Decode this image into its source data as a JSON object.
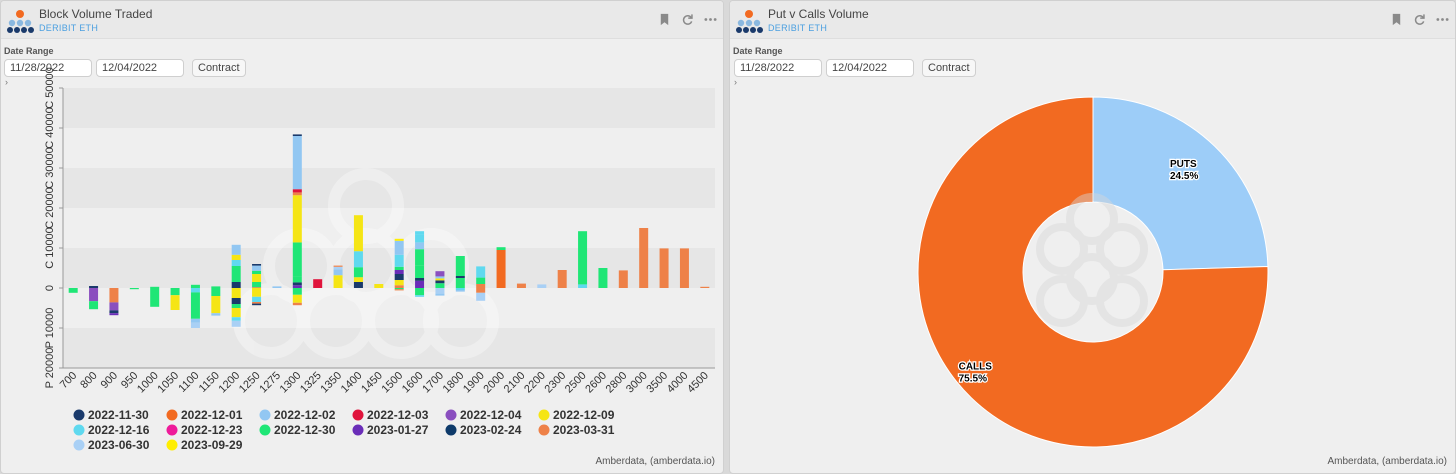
{
  "panels": [
    {
      "title": "Block Volume Traded",
      "subtitle": "DERIBIT ETH",
      "date_range_label": "Date Range",
      "date_from": "11/28/2022",
      "date_to": "12/04/2022",
      "contract_label": "Contract",
      "credit": "Amberdata, (amberdata.io)"
    },
    {
      "title": "Put v Calls Volume",
      "subtitle": "DERIBIT ETH",
      "date_range_label": "Date Range",
      "date_from": "11/28/2022",
      "date_to": "12/04/2022",
      "contract_label": "Contract",
      "credit": "Amberdata, (amberdata.io)"
    }
  ],
  "icons": [
    "logo-icon",
    "bookmark-icon",
    "refresh-icon",
    "more-icon",
    "chevron-right-icon"
  ],
  "chart_data": [
    {
      "type": "bar",
      "stacked": true,
      "title": "",
      "xlabel": "",
      "ylabel": "",
      "ylim": [
        -20000,
        50000
      ],
      "ytick_labels": [
        {
          "value": 50000,
          "label": "C 50000"
        },
        {
          "value": 40000,
          "label": "C 40000"
        },
        {
          "value": 30000,
          "label": "C 30000"
        },
        {
          "value": 20000,
          "label": "C 20000"
        },
        {
          "value": 10000,
          "label": "C 10000"
        },
        {
          "value": 0,
          "label": "0"
        },
        {
          "value": -10000,
          "label": "P 10000"
        },
        {
          "value": -20000,
          "label": "P 20000"
        }
      ],
      "categories": [
        "700",
        "800",
        "900",
        "950",
        "1000",
        "1050",
        "1100",
        "1150",
        "1200",
        "1250",
        "1275",
        "1300",
        "1325",
        "1350",
        "1400",
        "1450",
        "1500",
        "1600",
        "1700",
        "1800",
        "1900",
        "2000",
        "2100",
        "2200",
        "2300",
        "2500",
        "2600",
        "2800",
        "3000",
        "3500",
        "4000",
        "4500"
      ],
      "legend_position": "bottom",
      "series": [
        {
          "name": "2022-11-30",
          "color": "#1a3a6b"
        },
        {
          "name": "2022-12-01",
          "color": "#f26a21"
        },
        {
          "name": "2022-12-02",
          "color": "#92c7f2"
        },
        {
          "name": "2022-12-03",
          "color": "#e0143c"
        },
        {
          "name": "2022-12-04",
          "color": "#8a4fbf"
        },
        {
          "name": "2022-12-09",
          "color": "#f5e515"
        },
        {
          "name": "2022-12-16",
          "color": "#5fd9ef"
        },
        {
          "name": "2022-12-23",
          "color": "#ee1b9a"
        },
        {
          "name": "2022-12-30",
          "color": "#1fe676"
        },
        {
          "name": "2023-01-27",
          "color": "#6a2db8"
        },
        {
          "name": "2023-02-24",
          "color": "#0e3a6a"
        },
        {
          "name": "2023-03-31",
          "color": "#ee8148"
        },
        {
          "name": "2023-06-30",
          "color": "#a9d0f5"
        },
        {
          "name": "2023-09-29",
          "color": "#ffee00"
        }
      ],
      "stacks": [
        {
          "category": "700",
          "calls": [],
          "puts": [
            [
              "2022-12-30",
              1200
            ]
          ]
        },
        {
          "category": "800",
          "calls": [
            [
              "2022-11-30",
              500
            ]
          ],
          "puts": [
            [
              "2022-12-04",
              3300
            ],
            [
              "2022-12-30",
              2000
            ]
          ]
        },
        {
          "category": "900",
          "calls": [],
          "puts": [
            [
              "2023-03-31",
              3600
            ],
            [
              "2022-12-04",
              2000
            ],
            [
              "2022-11-30",
              700
            ],
            [
              "2023-01-27",
              500
            ]
          ]
        },
        {
          "category": "950",
          "calls": [],
          "puts": [
            [
              "2022-12-30",
              300
            ]
          ]
        },
        {
          "category": "1000",
          "calls": [
            [
              "2022-12-30",
              300
            ]
          ],
          "puts": [
            [
              "2022-12-30",
              4700
            ]
          ]
        },
        {
          "category": "1050",
          "calls": [],
          "puts": [
            [
              "2022-12-30",
              1800
            ],
            [
              "2022-12-09",
              3700
            ]
          ]
        },
        {
          "category": "1100",
          "calls": [
            [
              "2022-12-30",
              800
            ]
          ],
          "puts": [
            [
              "2022-12-16",
              1100
            ],
            [
              "2022-12-30",
              6600
            ],
            [
              "2022-12-02",
              1000
            ],
            [
              "2023-06-30",
              1300
            ]
          ]
        },
        {
          "category": "1150",
          "calls": [
            [
              "2022-12-30",
              400
            ]
          ],
          "puts": [
            [
              "2022-12-30",
              2000
            ],
            [
              "2022-12-09",
              4300
            ],
            [
              "2022-12-02",
              600
            ]
          ]
        },
        {
          "category": "1200",
          "calls": [
            [
              "2022-11-30",
              1500
            ],
            [
              "2022-12-30",
              4000
            ],
            [
              "2022-12-16",
              1500
            ],
            [
              "2022-12-09",
              1300
            ],
            [
              "2022-12-02",
              2500
            ]
          ],
          "puts": [
            [
              "2022-12-09",
              2500
            ],
            [
              "2022-11-30",
              1500
            ],
            [
              "2022-12-30",
              1000
            ],
            [
              "2022-12-09",
              2300
            ],
            [
              "2022-12-16",
              900
            ],
            [
              "2023-06-30",
              1500
            ]
          ]
        },
        {
          "category": "1250",
          "calls": [
            [
              "2023-03-31",
              200
            ],
            [
              "2022-12-30",
              1300
            ],
            [
              "2022-12-09",
              2000
            ],
            [
              "2022-12-30",
              800
            ],
            [
              "2022-12-02",
              1300
            ],
            [
              "2022-11-30",
              400
            ]
          ],
          "puts": [
            [
              "2022-12-09",
              2200
            ],
            [
              "2022-12-16",
              1300
            ],
            [
              "2023-03-31",
              400
            ],
            [
              "2022-11-30",
              400
            ]
          ]
        },
        {
          "category": "1275",
          "calls": [
            [
              "2022-12-02",
              400
            ]
          ],
          "puts": []
        },
        {
          "category": "1300",
          "calls": [
            [
              "2023-01-27",
              700
            ],
            [
              "2022-11-30",
              700
            ],
            [
              "2022-12-30",
              1500
            ],
            [
              "2022-12-30",
              8500
            ],
            [
              "2022-12-09",
              11800
            ],
            [
              "2023-03-31",
              700
            ],
            [
              "2022-12-03",
              800
            ],
            [
              "2022-12-02",
              13300
            ],
            [
              "2022-11-30",
              400
            ]
          ],
          "puts": [
            [
              "2022-12-30",
              1700
            ],
            [
              "2022-12-09",
              2000
            ],
            [
              "2023-03-31",
              600
            ]
          ]
        },
        {
          "category": "1325",
          "calls": [
            [
              "2022-12-03",
              2200
            ]
          ],
          "puts": []
        },
        {
          "category": "1350",
          "calls": [
            [
              "2022-12-09",
              3200
            ],
            [
              "2022-12-02",
              1500
            ],
            [
              "2023-06-30",
              600
            ],
            [
              "2023-03-31",
              300
            ]
          ],
          "puts": []
        },
        {
          "category": "1400",
          "calls": [
            [
              "2022-11-30",
              1500
            ],
            [
              "2022-12-09",
              1200
            ],
            [
              "2022-12-30",
              2500
            ],
            [
              "2022-12-16",
              4000
            ],
            [
              "2022-12-09",
              9000
            ]
          ],
          "puts": []
        },
        {
          "category": "1450",
          "calls": [
            [
              "2022-12-09",
              1000
            ]
          ],
          "puts": []
        },
        {
          "category": "1500",
          "calls": [
            [
              "2023-03-31",
              700
            ],
            [
              "2022-12-09",
              1300
            ],
            [
              "2022-11-30",
              1500
            ],
            [
              "2023-01-27",
              1000
            ],
            [
              "2022-12-30",
              800
            ],
            [
              "2022-12-16",
              3000
            ],
            [
              "2022-12-02",
              3500
            ],
            [
              "2023-09-29",
              500
            ]
          ],
          "puts": [
            [
              "2022-12-30",
              300
            ],
            [
              "2023-03-31",
              300
            ]
          ]
        },
        {
          "category": "1600",
          "calls": [
            [
              "2023-01-27",
              1800
            ],
            [
              "2022-11-30",
              700
            ],
            [
              "2022-12-30",
              3200
            ],
            [
              "2022-12-30",
              4000
            ],
            [
              "2022-12-02",
              1700
            ],
            [
              "2022-12-16",
              2000
            ],
            [
              "2022-12-16",
              800
            ]
          ],
          "puts": [
            [
              "2022-12-30",
              1800
            ],
            [
              "2022-12-16",
              400
            ]
          ]
        },
        {
          "category": "1700",
          "calls": [
            [
              "2022-12-30",
              1200
            ],
            [
              "2022-11-30",
              700
            ],
            [
              "2022-12-09",
              500
            ],
            [
              "2022-12-02",
              500
            ],
            [
              "2022-12-04",
              1300
            ]
          ],
          "puts": [
            [
              "2023-06-30",
              1400
            ],
            [
              "2022-12-02",
              500
            ]
          ]
        },
        {
          "category": "1800",
          "calls": [
            [
              "2022-12-30",
              2500
            ],
            [
              "2022-11-30",
              500
            ],
            [
              "2022-12-30",
              5000
            ]
          ],
          "puts": [
            [
              "2022-12-16",
              500
            ],
            [
              "2022-12-02",
              400
            ]
          ]
        },
        {
          "category": "1900",
          "calls": [
            [
              "2023-03-31",
              1000
            ],
            [
              "2022-12-30",
              1600
            ],
            [
              "2022-12-16",
              2800
            ]
          ],
          "puts": [
            [
              "2023-03-31",
              1200
            ],
            [
              "2023-06-30",
              2000
            ]
          ]
        },
        {
          "category": "2000",
          "calls": [
            [
              "2022-12-01",
              9500
            ],
            [
              "2022-12-30",
              700
            ]
          ],
          "puts": []
        },
        {
          "category": "2100",
          "calls": [
            [
              "2023-03-31",
              1100
            ]
          ],
          "puts": []
        },
        {
          "category": "2200",
          "calls": [
            [
              "2023-06-30",
              900
            ]
          ],
          "puts": []
        },
        {
          "category": "2300",
          "calls": [
            [
              "2023-03-31",
              4500
            ]
          ],
          "puts": []
        },
        {
          "category": "2500",
          "calls": [
            [
              "2022-12-16",
              900
            ],
            [
              "2022-12-30",
              13300
            ]
          ],
          "puts": []
        },
        {
          "category": "2600",
          "calls": [
            [
              "2022-12-30",
              5000
            ]
          ],
          "puts": []
        },
        {
          "category": "2800",
          "calls": [
            [
              "2023-03-31",
              4400
            ]
          ],
          "puts": []
        },
        {
          "category": "3000",
          "calls": [
            [
              "2023-03-31",
              15000
            ]
          ],
          "puts": []
        },
        {
          "category": "3500",
          "calls": [
            [
              "2023-03-31",
              9900
            ]
          ],
          "puts": []
        },
        {
          "category": "4000",
          "calls": [
            [
              "2023-03-31",
              9900
            ]
          ],
          "puts": []
        },
        {
          "category": "4500",
          "calls": [
            [
              "2023-03-31",
              300
            ]
          ],
          "puts": []
        }
      ]
    },
    {
      "type": "pie",
      "donut": true,
      "title": "",
      "slices": [
        {
          "label": "PUTS",
          "value": 24.5,
          "display": "24.5%",
          "color": "#9dcdf8"
        },
        {
          "label": "CALLS",
          "value": 75.5,
          "display": "75.5%",
          "color": "#f26a21"
        }
      ]
    }
  ]
}
